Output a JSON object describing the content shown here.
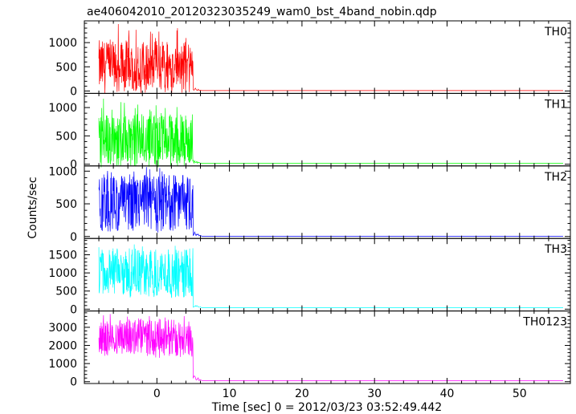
{
  "title": "ae406042010_20120323035249_wam0_bst_4band_nobin.qdp",
  "xlabel": "Time [sec] 0 = 2012/03/23 03:52:49.442",
  "ylabel": "Counts/sec",
  "chart_data": {
    "type": "line",
    "title": "ae406042010_20120323035249_wam0_bst_4band_nobin.qdp",
    "xlabel": "Time [sec] 0 = 2012/03/23 03:52:49.442",
    "ylabel": "Counts/sec",
    "xlim": [
      -10,
      57
    ],
    "x_ticks": [
      0,
      10,
      20,
      30,
      40,
      50
    ],
    "grid": false,
    "burst_window": [
      -8,
      5
    ],
    "post_burst_end": 56,
    "panels": [
      {
        "name": "TH0",
        "color": "#ff0000",
        "ylim": [
          -50,
          1450
        ],
        "y_ticks": [
          0,
          500,
          1000
        ],
        "burst_mean": 500,
        "burst_low": 150,
        "burst_high": 1450,
        "tail_level": 8
      },
      {
        "name": "TH1",
        "color": "#00ff00",
        "ylim": [
          -30,
          1250
        ],
        "y_ticks": [
          0,
          500,
          1000
        ],
        "burst_mean": 420,
        "burst_low": 80,
        "burst_high": 1200,
        "tail_level": 15
      },
      {
        "name": "TH2",
        "color": "#0000ff",
        "ylim": [
          -30,
          1080
        ],
        "y_ticks": [
          0,
          500,
          1000
        ],
        "burst_mean": 520,
        "burst_low": 60,
        "burst_high": 1080,
        "tail_level": 5
      },
      {
        "name": "TH3",
        "color": "#00ffff",
        "ylim": [
          -50,
          1950
        ],
        "y_ticks": [
          0,
          500,
          1000,
          1500
        ],
        "burst_mean": 1000,
        "burst_low": 300,
        "burst_high": 1900,
        "tail_level": 40
      },
      {
        "name": "TH0123",
        "color": "#ff00ff",
        "ylim": [
          -100,
          3900
        ],
        "y_ticks": [
          0,
          1000,
          2000,
          3000
        ],
        "burst_mean": 2450,
        "burst_low": 1300,
        "burst_high": 3750,
        "tail_level": 60
      }
    ]
  }
}
